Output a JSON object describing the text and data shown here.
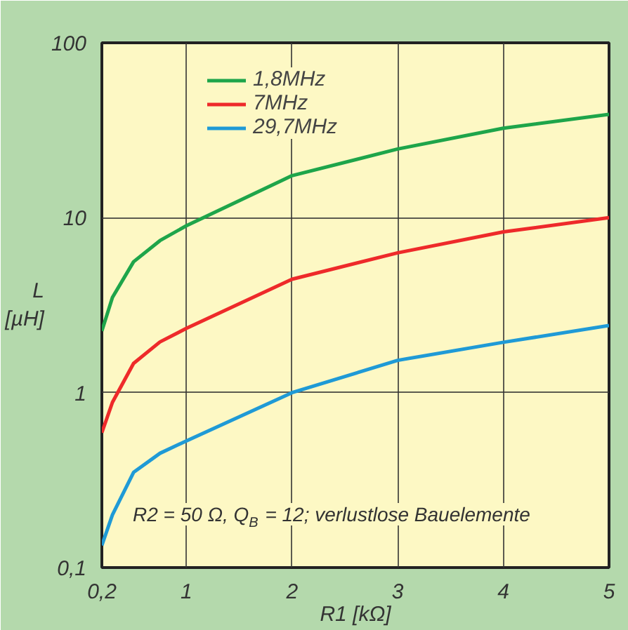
{
  "chart_data": {
    "type": "line",
    "xlabel": "R1 [kΩ]",
    "ylabel": "L\n[µH]",
    "x": [
      0.2,
      0.3,
      0.5,
      0.75,
      1,
      2,
      3,
      4,
      5
    ],
    "series": [
      {
        "name": "1,8MHz",
        "color": "#1ea54a",
        "values": [
          2.25,
          3.5,
          5.6,
          7.4,
          9,
          17.4,
          24.7,
          32.5,
          39
        ]
      },
      {
        "name": "7MHz",
        "color": "#ee2a2a",
        "values": [
          0.59,
          0.88,
          1.47,
          1.95,
          2.33,
          4.45,
          6.3,
          8.3,
          10
        ]
      },
      {
        "name": "29,7MHz",
        "color": "#1f9ad6",
        "values": [
          0.134,
          0.2,
          0.35,
          0.45,
          0.53,
          1.0,
          1.53,
          1.94,
          2.42
        ]
      }
    ],
    "xlim": [
      0.2,
      5
    ],
    "xticks": [
      {
        "value": 0.2,
        "label": "0,2"
      },
      1,
      2,
      3,
      4,
      5
    ],
    "ylim": [
      0.1,
      100
    ],
    "yticks": [
      {
        "value": 0.1,
        "label": "0,1"
      },
      1,
      10,
      100
    ],
    "log": "y",
    "grid": true,
    "legend": "top left",
    "line_style": "solid",
    "marker": "none",
    "annotations": [
      "R2 = 50 Ω, Q$_{B}$ = 12; verlustlose Bauelemente"
    ]
  }
}
